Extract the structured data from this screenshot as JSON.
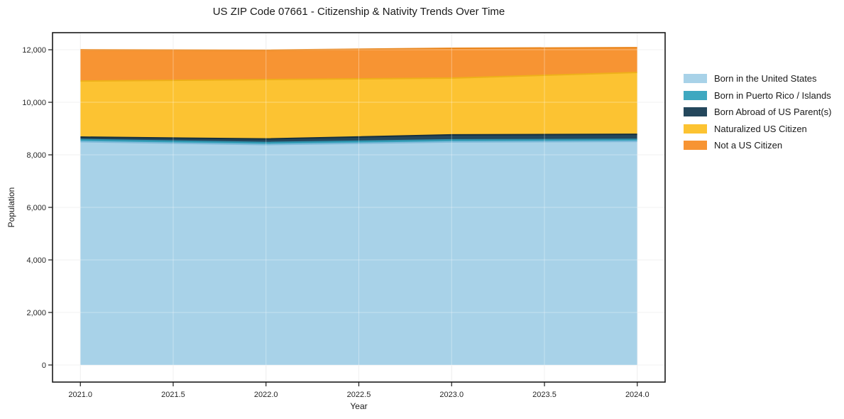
{
  "title": "US ZIP Code 07661 - Citizenship & Nativity Trends Over Time",
  "chart_data": {
    "type": "area",
    "stacked": true,
    "title": "US ZIP Code 07661 - Citizenship & Nativity Trends Over Time",
    "xlabel": "Year",
    "ylabel": "Population",
    "x": [
      2021,
      2022,
      2023,
      2024
    ],
    "series": [
      {
        "name": "Born in the United States",
        "color": "#a8d2e8",
        "edge": "#7fb9d9",
        "values": [
          8500,
          8390,
          8490,
          8510
        ]
      },
      {
        "name": "Born in Puerto Rico / Islands",
        "color": "#3ea8c0",
        "edge": "#2e93ad",
        "values": [
          80,
          80,
          80,
          80
        ]
      },
      {
        "name": "Born Abroad of US Parent(s)",
        "color": "#24475c",
        "edge": "#16303f",
        "values": [
          95,
          135,
          190,
          190
        ]
      },
      {
        "name": "Naturalized US Citizen",
        "color": "#fcc332",
        "edge": "#eeb01a",
        "values": [
          2135,
          2260,
          2160,
          2355
        ]
      },
      {
        "name": "Not a US Citizen",
        "color": "#f79433",
        "edge": "#e9861d",
        "values": [
          1190,
          1120,
          1135,
          945
        ]
      }
    ],
    "totals": [
      12000,
      11985,
      12055,
      12080
    ],
    "xlim": [
      2020.85,
      2024.15
    ],
    "ylim": [
      -650,
      12650
    ],
    "xticks": [
      2021.0,
      2021.5,
      2022.0,
      2022.5,
      2023.0,
      2023.5,
      2024.0
    ],
    "xtick_labels": [
      "2021.0",
      "2021.5",
      "2022.0",
      "2022.5",
      "2023.0",
      "2023.5",
      "2024.0"
    ],
    "yticks": [
      0,
      2000,
      4000,
      6000,
      8000,
      10000,
      12000
    ],
    "ytick_labels": [
      "0",
      "2,000",
      "4,000",
      "6,000",
      "8,000",
      "10,000",
      "12,000"
    ],
    "grid": true,
    "legend_position": "right",
    "colors": {
      "spine": "#1a1a1a",
      "gridline": "#e8e8e8",
      "tick_label": "#262626",
      "background": "#ffffff"
    }
  }
}
